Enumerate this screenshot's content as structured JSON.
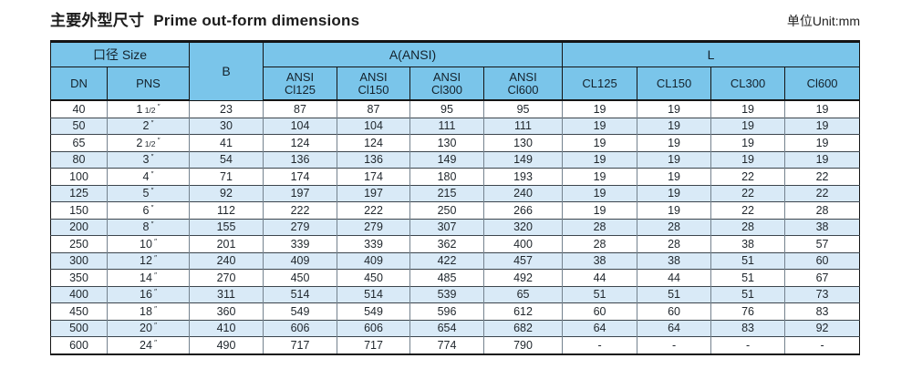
{
  "title": {
    "zh": "主要外型尺寸",
    "en": "Prime out-form dimensions"
  },
  "unit_label": "单位Unit:mm",
  "colors": {
    "header_bg": "#7AC5EA",
    "row_alt_bg": "#D9EAF7",
    "border_heavy": "#141414"
  },
  "table": {
    "groups": {
      "size": "口径 Size",
      "b": "B",
      "a": "A(ANSI)",
      "l": "L"
    },
    "sub_headers": {
      "dn": "DN",
      "pns": "PNS",
      "a_cols": [
        {
          "line1": "ANSI",
          "line2": "Cl125"
        },
        {
          "line1": "ANSI",
          "line2": "Cl150"
        },
        {
          "line1": "ANSI",
          "line2": "Cl300"
        },
        {
          "line1": "ANSI",
          "line2": "Cl600"
        }
      ],
      "l_cols": [
        "CL125",
        "CL150",
        "CL300",
        "Cl600"
      ]
    },
    "inch_mark": "″",
    "rows": [
      {
        "dn": "40",
        "pns": {
          "main": "1",
          "frac": "1/2"
        },
        "b": "23",
        "a": [
          "87",
          "87",
          "95",
          "95"
        ],
        "l": [
          "19",
          "19",
          "19",
          "19"
        ]
      },
      {
        "dn": "50",
        "pns": {
          "main": "2"
        },
        "b": "30",
        "a": [
          "104",
          "104",
          "111",
          "111"
        ],
        "l": [
          "19",
          "19",
          "19",
          "19"
        ]
      },
      {
        "dn": "65",
        "pns": {
          "main": "2",
          "frac": "1/2"
        },
        "b": "41",
        "a": [
          "124",
          "124",
          "130",
          "130"
        ],
        "l": [
          "19",
          "19",
          "19",
          "19"
        ]
      },
      {
        "dn": "80",
        "pns": {
          "main": "3"
        },
        "b": "54",
        "a": [
          "136",
          "136",
          "149",
          "149"
        ],
        "l": [
          "19",
          "19",
          "19",
          "19"
        ]
      },
      {
        "dn": "100",
        "pns": {
          "main": "4"
        },
        "b": "71",
        "a": [
          "174",
          "174",
          "180",
          "193"
        ],
        "l": [
          "19",
          "19",
          "22",
          "22"
        ]
      },
      {
        "dn": "125",
        "pns": {
          "main": "5"
        },
        "b": "92",
        "a": [
          "197",
          "197",
          "215",
          "240"
        ],
        "l": [
          "19",
          "19",
          "22",
          "22"
        ]
      },
      {
        "dn": "150",
        "pns": {
          "main": "6"
        },
        "b": "112",
        "a": [
          "222",
          "222",
          "250",
          "266"
        ],
        "l": [
          "19",
          "19",
          "22",
          "28"
        ]
      },
      {
        "dn": "200",
        "pns": {
          "main": "8"
        },
        "b": "155",
        "a": [
          "279",
          "279",
          "307",
          "320"
        ],
        "l": [
          "28",
          "28",
          "28",
          "38"
        ]
      },
      {
        "dn": "250",
        "pns": {
          "main": "10"
        },
        "b": "201",
        "a": [
          "339",
          "339",
          "362",
          "400"
        ],
        "l": [
          "28",
          "28",
          "38",
          "57"
        ]
      },
      {
        "dn": "300",
        "pns": {
          "main": "12"
        },
        "b": "240",
        "a": [
          "409",
          "409",
          "422",
          "457"
        ],
        "l": [
          "38",
          "38",
          "51",
          "60"
        ]
      },
      {
        "dn": "350",
        "pns": {
          "main": "14"
        },
        "b": "270",
        "a": [
          "450",
          "450",
          "485",
          "492"
        ],
        "l": [
          "44",
          "44",
          "51",
          "67"
        ]
      },
      {
        "dn": "400",
        "pns": {
          "main": "16"
        },
        "b": "311",
        "a": [
          "514",
          "514",
          "539",
          "65"
        ],
        "l": [
          "51",
          "51",
          "51",
          "73"
        ]
      },
      {
        "dn": "450",
        "pns": {
          "main": "18"
        },
        "b": "360",
        "a": [
          "549",
          "549",
          "596",
          "612"
        ],
        "l": [
          "60",
          "60",
          "76",
          "83"
        ]
      },
      {
        "dn": "500",
        "pns": {
          "main": "20"
        },
        "b": "410",
        "a": [
          "606",
          "606",
          "654",
          "682"
        ],
        "l": [
          "64",
          "64",
          "83",
          "92"
        ]
      },
      {
        "dn": "600",
        "pns": {
          "main": "24"
        },
        "b": "490",
        "a": [
          "717",
          "717",
          "774",
          "790"
        ],
        "l": [
          "-",
          "-",
          "-",
          "-"
        ]
      }
    ]
  }
}
